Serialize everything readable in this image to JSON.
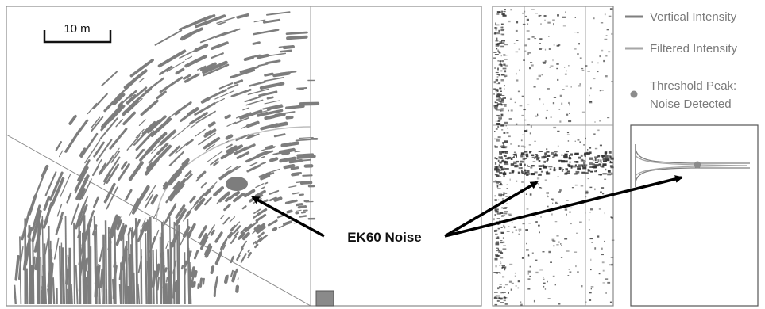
{
  "scale_bar": {
    "label": "10 m"
  },
  "annotation": {
    "label": "EK60 Noise"
  },
  "legend": {
    "items": [
      {
        "label": "Vertical Intensity",
        "kind": "line",
        "color": "#7f7f7f"
      },
      {
        "label": "Filtered Intensity",
        "kind": "line",
        "color": "#a6a6a6"
      },
      {
        "label": "Threshold Peak:",
        "label2": "Noise Detected",
        "kind": "dot",
        "color": "#8c8c8c"
      }
    ]
  },
  "colors": {
    "echo": "#7d7d7d",
    "frame": "#8a8a8a",
    "arrow": "#000000",
    "arc": "#bdbdbd"
  }
}
